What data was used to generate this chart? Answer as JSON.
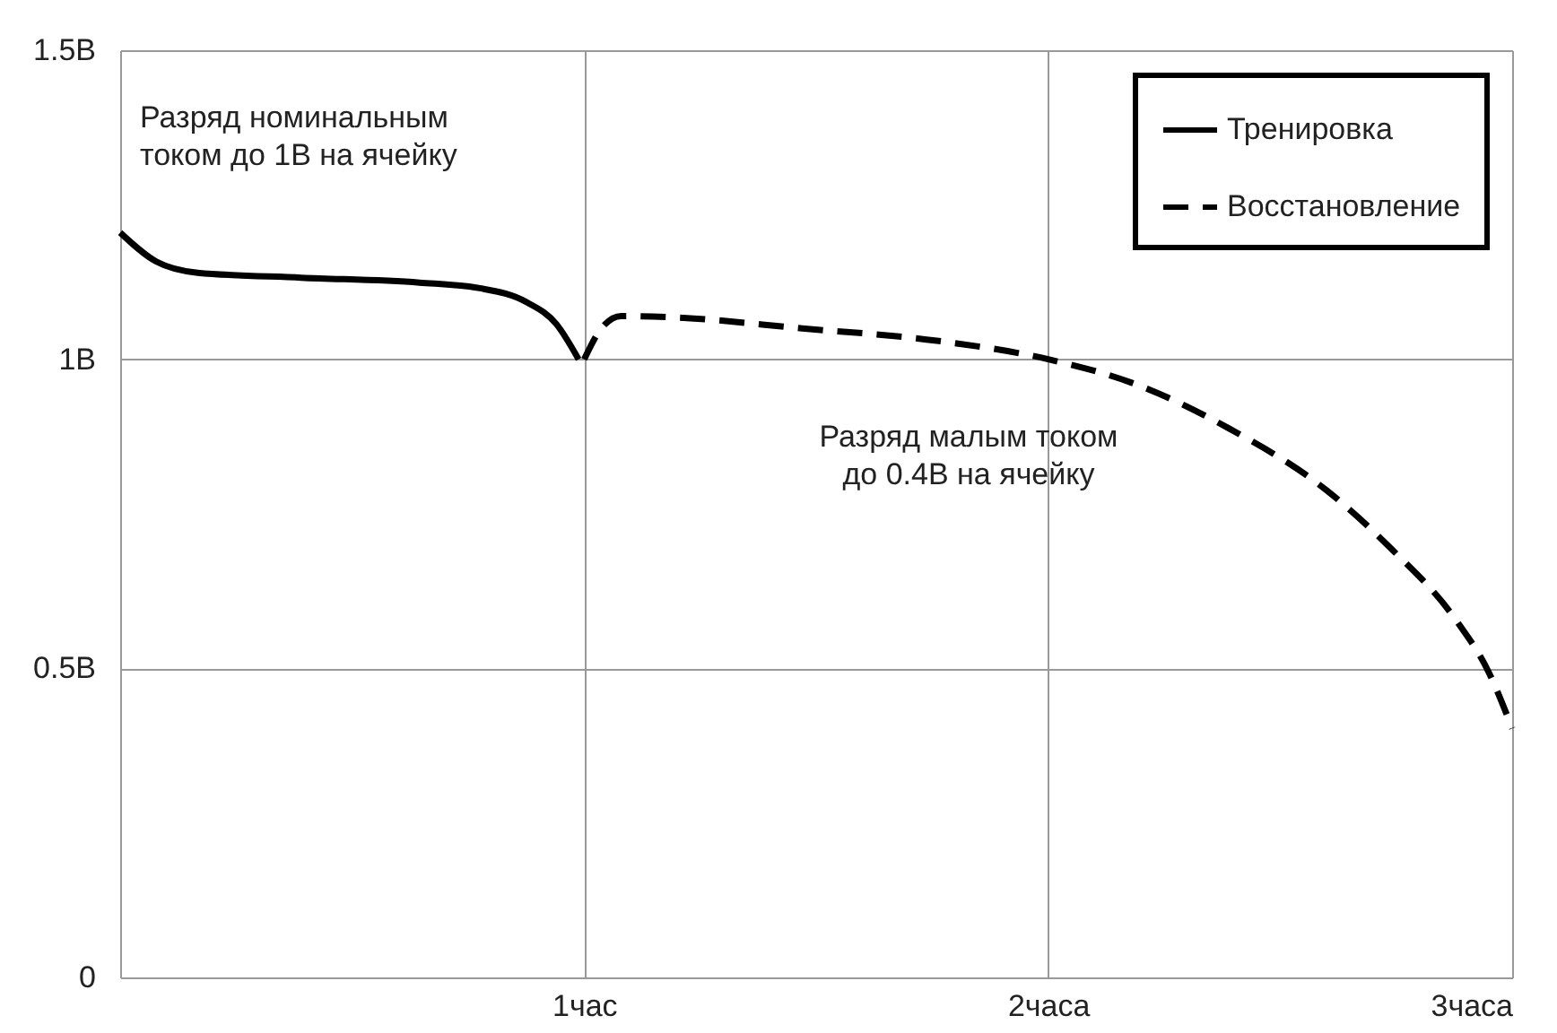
{
  "chart_data": {
    "type": "line",
    "annotations": [
      "Разряд номинальным\nтоком до 1В на ячейку",
      "Разряд малым током\nдо 0.4В на ячейку"
    ],
    "series": [
      {
        "name": "Тренировка",
        "color": "#000000",
        "line_style": "solid",
        "x": [
          0,
          0.078,
          0.167,
          0.39,
          0.645,
          0.775,
          0.877,
          0.94,
          0.988
        ],
        "values": [
          1.205,
          1.158,
          1.14,
          1.132,
          1.124,
          1.115,
          1.092,
          1.057,
          1.0
        ]
      },
      {
        "name": "Восстановление",
        "color": "#000000",
        "line_style": "dashed",
        "x": [
          1.0,
          1.035,
          1.08,
          1.19,
          1.47,
          1.76,
          2.0,
          2.18,
          2.39,
          2.6,
          2.74,
          2.88,
          2.95,
          3.0
        ],
        "values": [
          1.0,
          1.048,
          1.07,
          1.068,
          1.05,
          1.03,
          1.0,
          0.962,
          0.888,
          0.788,
          0.693,
          0.577,
          0.493,
          0.403
        ]
      }
    ],
    "xlim": [
      0,
      3
    ],
    "xticks": [
      {
        "value": 1,
        "label": "1час"
      },
      {
        "value": 2,
        "label": "2часа"
      },
      {
        "value": 3,
        "label": "3часа"
      }
    ],
    "ylim": [
      0,
      1.5
    ],
    "yticks": [
      0,
      {
        "value": 0.5,
        "label": "0.5В"
      },
      {
        "value": 1,
        "label": "1В"
      },
      {
        "value": 1.5,
        "label": "1.5В"
      }
    ],
    "grid": true,
    "legend": "top right",
    "marker": "none"
  }
}
